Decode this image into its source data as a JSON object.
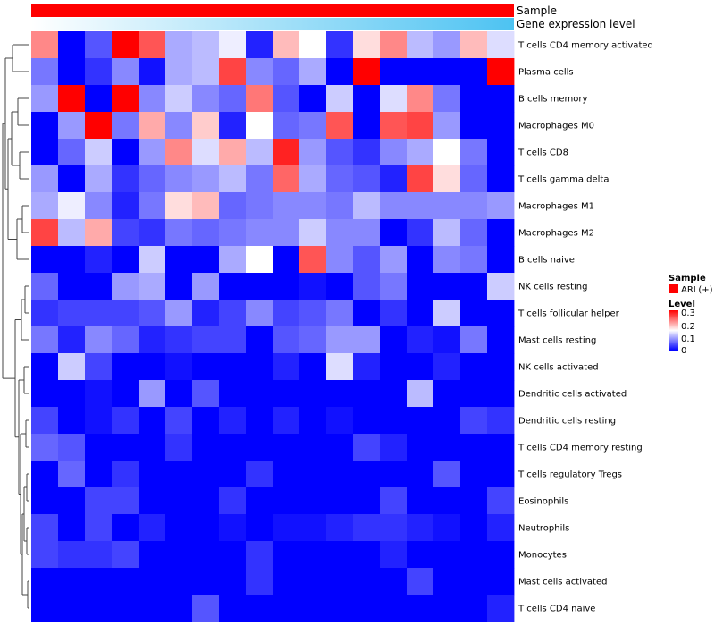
{
  "chart_data": {
    "type": "heatmap",
    "title": "",
    "rows": [
      "T cells CD4 memory activated",
      "Plasma cells",
      "B cells memory",
      "Macrophages M0",
      "T cells CD8",
      "T cells gamma delta",
      "Macrophages M1",
      "Macrophages M2",
      "B cells naive",
      "NK cells resting",
      "T cells follicular helper",
      "Mast cells resting",
      "NK cells activated",
      "Dendritic cells activated",
      "Dendritic cells resting",
      "T cells CD4 memory resting",
      "T cells regulatory  Tregs",
      "Eosinophils",
      "Neutrophils",
      "Monocytes",
      "Mast cells activated",
      "T cells CD4 naive"
    ],
    "n_columns": 18,
    "values": [
      [
        0.22,
        0.0,
        0.05,
        0.3,
        0.25,
        0.1,
        0.11,
        0.14,
        0.02,
        0.19,
        0.15,
        0.03,
        0.17,
        0.22,
        0.11,
        0.09,
        0.19,
        0.13
      ],
      [
        0.07,
        0.0,
        0.03,
        0.08,
        0.01,
        0.1,
        0.11,
        0.26,
        0.08,
        0.06,
        0.1,
        0.0,
        0.3,
        0.0,
        0.0,
        0.0,
        0.0,
        0.3
      ],
      [
        0.09,
        0.3,
        0.0,
        0.3,
        0.08,
        0.12,
        0.08,
        0.06,
        0.23,
        0.05,
        0.0,
        0.12,
        0.0,
        0.13,
        0.22,
        0.07,
        0.0,
        0.0
      ],
      [
        0.0,
        0.09,
        0.3,
        0.07,
        0.2,
        0.08,
        0.18,
        0.02,
        0.15,
        0.06,
        0.07,
        0.25,
        0.0,
        0.25,
        0.26,
        0.09,
        0.0,
        0.0
      ],
      [
        0.0,
        0.06,
        0.12,
        0.0,
        0.09,
        0.22,
        0.13,
        0.2,
        0.11,
        0.28,
        0.09,
        0.05,
        0.03,
        0.08,
        0.1,
        0.15,
        0.07,
        0.0
      ],
      [
        0.09,
        0.0,
        0.1,
        0.03,
        0.06,
        0.08,
        0.09,
        0.11,
        0.07,
        0.24,
        0.1,
        0.06,
        0.05,
        0.02,
        0.26,
        0.17,
        0.06,
        0.0
      ],
      [
        0.1,
        0.14,
        0.08,
        0.02,
        0.07,
        0.17,
        0.19,
        0.06,
        0.07,
        0.08,
        0.08,
        0.07,
        0.11,
        0.08,
        0.08,
        0.08,
        0.08,
        0.09
      ],
      [
        0.26,
        0.11,
        0.2,
        0.04,
        0.03,
        0.07,
        0.06,
        0.07,
        0.08,
        0.08,
        0.12,
        0.08,
        0.08,
        0.0,
        0.03,
        0.11,
        0.06,
        0.0
      ],
      [
        0.0,
        0.0,
        0.02,
        0.0,
        0.12,
        0.0,
        0.0,
        0.1,
        0.15,
        0.0,
        0.25,
        0.08,
        0.05,
        0.09,
        0.0,
        0.08,
        0.07,
        0.0
      ],
      [
        0.06,
        0.0,
        0.0,
        0.09,
        0.1,
        0.0,
        0.09,
        0.0,
        0.0,
        0.0,
        0.01,
        0.0,
        0.05,
        0.07,
        0.0,
        0.0,
        0.0,
        0.12
      ],
      [
        0.03,
        0.04,
        0.04,
        0.04,
        0.05,
        0.09,
        0.02,
        0.04,
        0.08,
        0.04,
        0.05,
        0.07,
        0.0,
        0.03,
        0.0,
        0.12,
        0.0,
        0.0
      ],
      [
        0.07,
        0.02,
        0.08,
        0.06,
        0.02,
        0.03,
        0.04,
        0.04,
        0.0,
        0.05,
        0.06,
        0.09,
        0.09,
        0.0,
        0.02,
        0.01,
        0.07,
        0.0
      ],
      [
        0.0,
        0.12,
        0.04,
        0.0,
        0.0,
        0.01,
        0.0,
        0.0,
        0.0,
        0.02,
        0.0,
        0.13,
        0.02,
        0.0,
        0.0,
        0.02,
        0.0,
        0.0
      ],
      [
        0.0,
        0.0,
        0.01,
        0.0,
        0.09,
        0.0,
        0.05,
        0.0,
        0.0,
        0.0,
        0.0,
        0.0,
        0.0,
        0.0,
        0.11,
        0.0,
        0.0,
        0.0
      ],
      [
        0.04,
        0.0,
        0.01,
        0.03,
        0.0,
        0.04,
        0.0,
        0.02,
        0.0,
        0.02,
        0.0,
        0.01,
        0.0,
        0.0,
        0.0,
        0.0,
        0.04,
        0.03
      ],
      [
        0.06,
        0.05,
        0.0,
        0.0,
        0.0,
        0.03,
        0.0,
        0.0,
        0.0,
        0.0,
        0.0,
        0.0,
        0.04,
        0.02,
        0.0,
        0.0,
        0.0,
        0.0
      ],
      [
        0.0,
        0.06,
        0.0,
        0.03,
        0.0,
        0.0,
        0.0,
        0.0,
        0.03,
        0.0,
        0.0,
        0.0,
        0.0,
        0.0,
        0.0,
        0.05,
        0.0,
        0.0
      ],
      [
        0.0,
        0.0,
        0.04,
        0.04,
        0.0,
        0.0,
        0.0,
        0.03,
        0.0,
        0.0,
        0.0,
        0.0,
        0.0,
        0.04,
        0.0,
        0.0,
        0.0,
        0.04
      ],
      [
        0.04,
        0.0,
        0.04,
        0.0,
        0.02,
        0.0,
        0.0,
        0.01,
        0.0,
        0.01,
        0.01,
        0.02,
        0.03,
        0.03,
        0.02,
        0.01,
        0.0,
        0.02
      ],
      [
        0.04,
        0.03,
        0.03,
        0.04,
        0.0,
        0.0,
        0.0,
        0.0,
        0.03,
        0.0,
        0.0,
        0.0,
        0.0,
        0.02,
        0.0,
        0.0,
        0.0,
        0.0
      ],
      [
        0.0,
        0.0,
        0.0,
        0.0,
        0.0,
        0.0,
        0.0,
        0.0,
        0.03,
        0.0,
        0.0,
        0.0,
        0.0,
        0.0,
        0.04,
        0.0,
        0.0,
        0.0
      ],
      [
        0.0,
        0.0,
        0.0,
        0.0,
        0.0,
        0.0,
        0.05,
        0.0,
        0.0,
        0.0,
        0.0,
        0.0,
        0.0,
        0.0,
        0.0,
        0.0,
        0.0,
        0.02
      ]
    ],
    "color_scale": {
      "min": 0,
      "max": 0.3,
      "low_color": "#0000ff",
      "mid_color": "#ffffff",
      "high_color": "#ff0000",
      "ticks": [
        "0.3",
        "0.2",
        "0.1",
        "0"
      ]
    },
    "top_annotations": [
      {
        "label": "Sample",
        "color": "#ff0000"
      },
      {
        "label": "Gene expression level",
        "gradient_start": "#ffffff",
        "gradient_end": "#4dc3f2"
      }
    ],
    "legend": {
      "sample_title": "Sample",
      "sample_entry": "ARL(+)",
      "level_title": "Level",
      "position": "right"
    }
  }
}
